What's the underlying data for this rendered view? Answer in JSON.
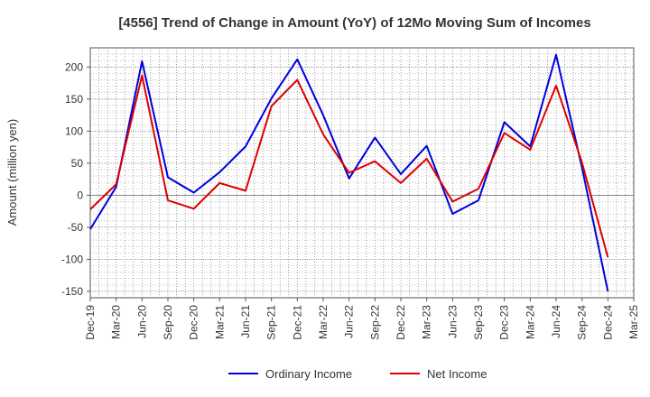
{
  "chart_data": {
    "type": "line",
    "title": "[4556]  Trend of Change in Amount (YoY) of 12Mo Moving Sum of Incomes",
    "ylabel": "Amount (million yen)",
    "xlabel": "",
    "ylim": [
      -160,
      230
    ],
    "yticks": [
      200,
      150,
      100,
      50,
      0,
      -50,
      -100,
      -150
    ],
    "categories": [
      "Dec-19",
      "Mar-20",
      "Jun-20",
      "Sep-20",
      "Dec-20",
      "Mar-21",
      "Jun-21",
      "Sep-21",
      "Dec-21",
      "Mar-22",
      "Jun-22",
      "Sep-22",
      "Dec-22",
      "Mar-23",
      "Jun-23",
      "Sep-23",
      "Dec-23",
      "Mar-24",
      "Jun-24",
      "Sep-24",
      "Dec-24",
      "Mar-25"
    ],
    "grid": true,
    "legend_position": "bottom",
    "series": [
      {
        "name": "Ordinary Income",
        "color": "#0000dd",
        "values": [
          -53,
          13,
          209,
          28,
          4,
          36,
          76,
          151,
          212,
          125,
          26,
          90,
          33,
          77,
          -29,
          -8,
          114,
          76,
          219,
          43,
          -150,
          null
        ]
      },
      {
        "name": "Net Income",
        "color": "#dd0000",
        "values": [
          -22,
          17,
          187,
          -8,
          -21,
          19,
          7,
          139,
          180,
          95,
          35,
          53,
          19,
          57,
          -10,
          10,
          97,
          71,
          171,
          51,
          -97,
          null
        ]
      }
    ]
  }
}
